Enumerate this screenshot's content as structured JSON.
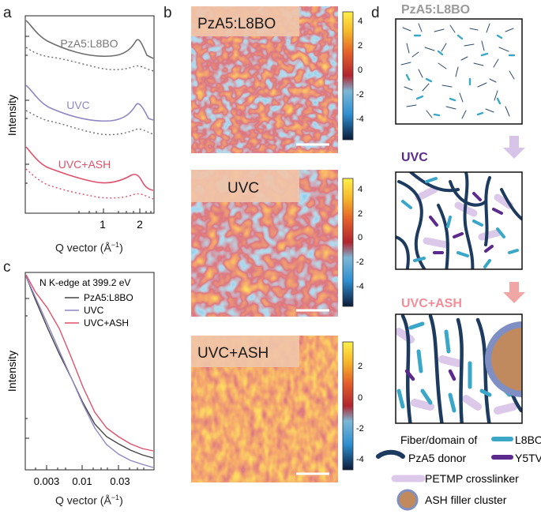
{
  "panels": {
    "a": "a",
    "b": "b",
    "c": "c",
    "d": "d"
  },
  "panel_a": {
    "ylabel": "Intensity",
    "xlabel_main": "Q vector (Å",
    "xlabel_sup": "−1",
    "xlabel_close": ")",
    "ticks": [
      "1",
      "2"
    ],
    "labels": {
      "pza5": "PzA5:L8BO",
      "uvc": "UVC",
      "ash": "UVC+ASH"
    }
  },
  "panel_b": {
    "maps": [
      {
        "label": "PzA5:L8BO",
        "cbar_ticks": [
          "4",
          "2",
          "0",
          "-2",
          "-4"
        ]
      },
      {
        "label": "UVC",
        "cbar_ticks": [
          "4",
          "2",
          "0",
          "-2",
          "-4"
        ]
      },
      {
        "label": "UVC+ASH",
        "cbar_ticks": [
          "2",
          "0",
          "-2",
          "-4"
        ]
      }
    ]
  },
  "panel_c": {
    "title": "N K-edge at 399.2 eV",
    "ylabel": "Intensity",
    "xlabel_main": "Q vector (Å",
    "xlabel_sup": "−1",
    "xlabel_close": ")",
    "ticks": [
      "0.003",
      "0.01",
      "0.03"
    ],
    "legend": [
      {
        "name": "PzA5:L8BO",
        "color": "#444444"
      },
      {
        "name": "UVC",
        "color": "#8f86c4"
      },
      {
        "name": "UVC+ASH",
        "color": "#e0506a"
      }
    ]
  },
  "panel_d": {
    "titles": {
      "pza5": "PzA5:L8BO",
      "uvc": "UVC",
      "ash": "UVC+ASH"
    },
    "legend": {
      "fiber_of": "Fiber/domain of",
      "l8bo": "L8BO",
      "pza5": "PzA5 donor",
      "y5tv": "Y5TV",
      "petmp": "PETMP crosslinker",
      "ash": "ASH filler cluster"
    },
    "colors": {
      "donor": "#1d3a5f",
      "l8bo": "#3aa6c8",
      "y5tv": "#5b2a8c",
      "petmp": "#dcc8e8",
      "ash_fill": "#c08a5e",
      "ash_ring": "#7f8fc4"
    }
  }
}
